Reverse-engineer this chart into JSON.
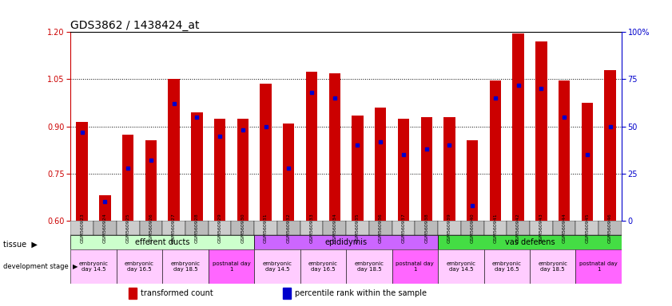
{
  "title": "GDS3862 / 1438424_at",
  "samples": [
    "GSM560923",
    "GSM560924",
    "GSM560925",
    "GSM560926",
    "GSM560927",
    "GSM560928",
    "GSM560929",
    "GSM560930",
    "GSM560931",
    "GSM560932",
    "GSM560933",
    "GSM560934",
    "GSM560935",
    "GSM560936",
    "GSM560937",
    "GSM560938",
    "GSM560939",
    "GSM560940",
    "GSM560941",
    "GSM560942",
    "GSM560943",
    "GSM560944",
    "GSM560945",
    "GSM560946"
  ],
  "bar_values": [
    0.915,
    0.68,
    0.875,
    0.855,
    1.05,
    0.945,
    0.925,
    0.925,
    1.035,
    0.91,
    1.075,
    1.07,
    0.935,
    0.96,
    0.925,
    0.93,
    0.93,
    0.855,
    1.045,
    1.195,
    1.17,
    1.045,
    0.975,
    1.08
  ],
  "percentile_values": [
    47,
    10,
    28,
    32,
    62,
    55,
    45,
    48,
    50,
    28,
    68,
    65,
    40,
    42,
    35,
    38,
    40,
    8,
    65,
    72,
    70,
    55,
    35,
    50
  ],
  "ylim_left": [
    0.6,
    1.2
  ],
  "ylim_right": [
    0,
    100
  ],
  "yticks_left": [
    0.6,
    0.75,
    0.9,
    1.05,
    1.2
  ],
  "yticks_right": [
    0,
    25,
    50,
    75,
    100
  ],
  "bar_color": "#cc0000",
  "dot_color": "#0000cc",
  "tissue_groups": [
    {
      "label": "efferent ducts",
      "start": 0,
      "end": 7,
      "color": "#ccffcc"
    },
    {
      "label": "epididymis",
      "start": 8,
      "end": 15,
      "color": "#cc66ff"
    },
    {
      "label": "vas deferens",
      "start": 16,
      "end": 23,
      "color": "#44dd44"
    }
  ],
  "dev_stage_groups": [
    {
      "label": "embryonic\nday 14.5",
      "start": 0,
      "end": 1,
      "color": "#ffccff"
    },
    {
      "label": "embryonic\nday 16.5",
      "start": 2,
      "end": 3,
      "color": "#ffccff"
    },
    {
      "label": "embryonic\nday 18.5",
      "start": 4,
      "end": 5,
      "color": "#ffccff"
    },
    {
      "label": "postnatal day\n1",
      "start": 6,
      "end": 7,
      "color": "#ff66ff"
    },
    {
      "label": "embryonic\nday 14.5",
      "start": 8,
      "end": 9,
      "color": "#ffccff"
    },
    {
      "label": "embryonic\nday 16.5",
      "start": 10,
      "end": 11,
      "color": "#ffccff"
    },
    {
      "label": "embryonic\nday 18.5",
      "start": 12,
      "end": 13,
      "color": "#ffccff"
    },
    {
      "label": "postnatal day\n1",
      "start": 14,
      "end": 15,
      "color": "#ff66ff"
    },
    {
      "label": "embryonic\nday 14.5",
      "start": 16,
      "end": 17,
      "color": "#ffccff"
    },
    {
      "label": "embryonic\nday 16.5",
      "start": 18,
      "end": 19,
      "color": "#ffccff"
    },
    {
      "label": "embryonic\nday 18.5",
      "start": 20,
      "end": 21,
      "color": "#ffccff"
    },
    {
      "label": "postnatal day\n1",
      "start": 22,
      "end": 23,
      "color": "#ff66ff"
    }
  ],
  "legend_items": [
    {
      "label": "transformed count",
      "color": "#cc0000"
    },
    {
      "label": "percentile rank within the sample",
      "color": "#0000cc"
    }
  ],
  "background_color": "#ffffff",
  "bar_width": 0.5,
  "xtick_bg": "#cccccc"
}
